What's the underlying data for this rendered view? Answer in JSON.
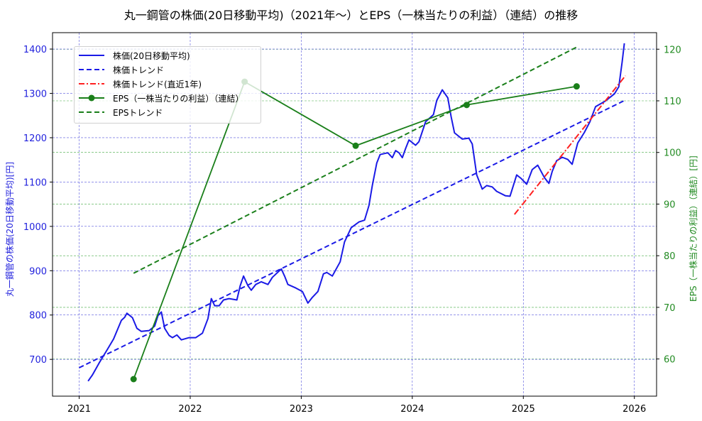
{
  "title": "丸一鋼管の株価(20日移動平均)（2021年〜）とEPS（一株当たりの利益）（連結）の推移",
  "colors": {
    "price": "#1a1ae6",
    "price_trend": "#1a1ae6",
    "price_trend_recent": "#ff2020",
    "eps": "#1a7f1a",
    "eps_trend": "#1a7f1a",
    "grid_left": "#5555dd",
    "grid_right": "#44aa44",
    "left_axis_text": "#2222dd",
    "right_axis_text": "#228b22"
  },
  "legend": {
    "items": [
      {
        "label": "株価(20日移動平均)",
        "style": "solid-blue"
      },
      {
        "label": "株価トレンド",
        "style": "dashed-blue"
      },
      {
        "label": "株価トレンド(直近1年)",
        "style": "dashdot-red"
      },
      {
        "label": "EPS（一株当たりの利益）（連結）",
        "style": "solid-green-marker"
      },
      {
        "label": "EPSトレンド",
        "style": "dashed-green"
      }
    ]
  },
  "axes": {
    "left_label": "丸一鋼管の株価(20日移動平均)[円]",
    "right_label": "EPS（一株当たりの利益）（連結）[円]",
    "x_ticks": [
      "2021",
      "2022",
      "2023",
      "2024",
      "2025",
      "2026"
    ],
    "left_ticks": [
      "700",
      "800",
      "900",
      "1000",
      "1100",
      "1200",
      "1300",
      "1400"
    ],
    "right_ticks": [
      "60",
      "70",
      "80",
      "90",
      "100",
      "110",
      "120"
    ]
  },
  "chart_data": {
    "type": "line",
    "title": "丸一鋼管の株価(20日移動平均)（2021年〜）とEPS（一株当たりの利益）（連結）の推移",
    "xlabel": "",
    "ylabel": "丸一鋼管の株価(20日移動平均)[円]",
    "ylabel_right": "EPS（一株当たりの利益）（連結）[円]",
    "xlim": [
      2020.76,
      2026.2
    ],
    "ylim": [
      617,
      1437
    ],
    "ylim_right": [
      52.8,
      123.2
    ],
    "grid": true,
    "legend_position": "upper left",
    "series": [
      {
        "name": "株価(20日移動平均)",
        "axis": "left",
        "style": "solid",
        "x": [
          2021.08,
          2021.12,
          2021.18,
          2021.25,
          2021.31,
          2021.34,
          2021.38,
          2021.41,
          2021.43,
          2021.48,
          2021.52,
          2021.56,
          2021.63,
          2021.68,
          2021.71,
          2021.74,
          2021.77,
          2021.81,
          2021.84,
          2021.88,
          2021.92,
          2021.99,
          2022.05,
          2022.11,
          2022.16,
          2022.19,
          2022.22,
          2022.26,
          2022.3,
          2022.35,
          2022.42,
          2022.45,
          2022.48,
          2022.52,
          2022.55,
          2022.59,
          2022.64,
          2022.7,
          2022.74,
          2022.82,
          2022.85,
          2022.88,
          2022.95,
          2023.01,
          2023.06,
          2023.06,
          2023.1,
          2023.15,
          2023.2,
          2023.23,
          2023.28,
          2023.35,
          2023.39,
          2023.45,
          2023.52,
          2023.57,
          2023.61,
          2023.64,
          2023.68,
          2023.71,
          2023.78,
          2023.82,
          2023.85,
          2023.88,
          2023.91,
          2023.94,
          2023.97,
          2024.03,
          2024.06,
          2024.12,
          2024.19,
          2024.22,
          2024.27,
          2024.32,
          2024.35,
          2024.38,
          2024.45,
          2024.51,
          2024.54,
          2024.58,
          2024.63,
          2024.67,
          2024.72,
          2024.76,
          2024.84,
          2024.88,
          2024.91,
          2024.94,
          2024.98,
          2025.03,
          2025.08,
          2025.13,
          2025.19,
          2025.23,
          2025.26,
          2025.3,
          2025.35,
          2025.4,
          2025.44,
          2025.49,
          2025.55,
          2025.6,
          2025.65,
          2025.74,
          2025.82,
          2025.86,
          2025.89,
          2025.91
        ],
        "values": [
          651,
          665,
          692,
          721,
          746,
          764,
          788,
          795,
          804,
          794,
          770,
          763,
          765,
          775,
          799,
          807,
          770,
          754,
          749,
          755,
          744,
          749,
          749,
          759,
          792,
          837,
          821,
          821,
          834,
          837,
          834,
          866,
          888,
          866,
          856,
          869,
          875,
          869,
          885,
          904,
          888,
          869,
          861,
          853,
          827,
          827,
          840,
          853,
          893,
          896,
          888,
          920,
          965,
          997,
          1010,
          1014,
          1047,
          1092,
          1143,
          1162,
          1166,
          1155,
          1171,
          1166,
          1155,
          1176,
          1195,
          1183,
          1191,
          1236,
          1252,
          1284,
          1308,
          1290,
          1247,
          1211,
          1197,
          1199,
          1186,
          1116,
          1084,
          1092,
          1089,
          1079,
          1069,
          1068,
          1092,
          1116,
          1108,
          1095,
          1128,
          1138,
          1110,
          1097,
          1124,
          1148,
          1156,
          1151,
          1140,
          1188,
          1212,
          1236,
          1270,
          1283,
          1299,
          1315,
          1371,
          1413
        ]
      },
      {
        "name": "株価トレンド",
        "axis": "left",
        "style": "dashed",
        "x": [
          2021.0,
          2025.92
        ],
        "values": [
          681,
          1285
        ]
      },
      {
        "name": "株価トレンド(直近1年)",
        "axis": "left",
        "style": "dashdot",
        "x": [
          2024.92,
          2025.92
        ],
        "values": [
          1027,
          1340
        ]
      },
      {
        "name": "EPS（一株当たりの利益）（連結）",
        "axis": "right",
        "style": "solid-marker",
        "x": [
          2021.49,
          2022.49,
          2023.49,
          2024.49,
          2025.48
        ],
        "values": [
          56.1,
          113.7,
          101.3,
          109.2,
          112.8
        ]
      },
      {
        "name": "EPSトレンド",
        "axis": "right",
        "style": "dashed",
        "x": [
          2021.49,
          2025.48
        ],
        "values": [
          76.6,
          120.4
        ]
      }
    ]
  }
}
